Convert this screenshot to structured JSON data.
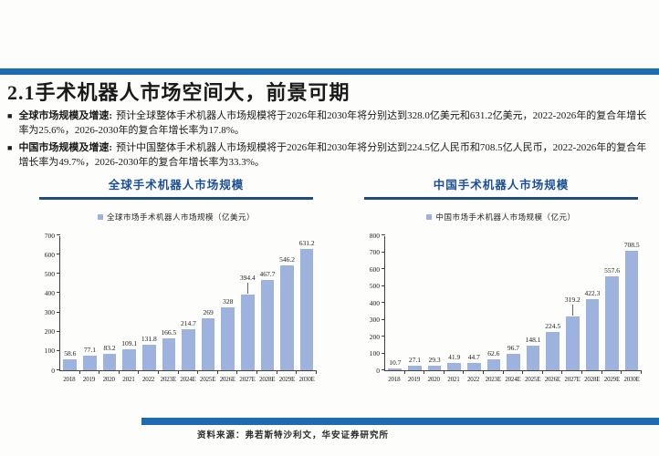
{
  "header": {
    "title": "2.1手术机器人市场空间大，前景可期"
  },
  "bullets": [
    {
      "marker": "■",
      "lead": "全球市场规模及增速:",
      "text": "预计全球整体手术机器人市场规模将于2026年和2030年将分别达到328.0亿美元和631.2亿美元，2022-2026年的复合年增长率为25.6%，2026-2030年的复合年增长率为17.8%。"
    },
    {
      "marker": "■",
      "lead": "中国市场规模及增速:",
      "text": "预计中国整体手术机器人市场规模将于2026年和2030年将分别达到224.5亿人民币和708.5亿人民币，2022-2026年的复合年增长率为49.7%，2026-2030年的复合年增长率为33.3%。"
    }
  ],
  "colors": {
    "accent_bar": "#1c6cb2",
    "chart_title": "#1b4f94",
    "title_underline": "#1f4e79",
    "bar_fill": "#9db3de",
    "axis": "#404040"
  },
  "chart_data": [
    {
      "type": "bar",
      "title": "全球手术机器人市场规模",
      "legend": "全球市场手术机器人市场规模（亿美元）",
      "categories": [
        "2018",
        "2019",
        "2020",
        "2021",
        "2022",
        "2023E",
        "2024E",
        "2025E",
        "2026E",
        "2027E",
        "2028E",
        "2029E",
        "2030E"
      ],
      "values": [
        58.6,
        77.1,
        83.2,
        109.1,
        131.8,
        166.5,
        214.7,
        269,
        328,
        394.4,
        467.7,
        546.2,
        631.2
      ],
      "labels": [
        "58.6",
        "77.1",
        "83.2",
        "109.1",
        "131.8",
        "166.5",
        "214.7",
        "269",
        "328",
        "394.4",
        "467.7",
        "546.2",
        "631.2"
      ],
      "ylim": [
        0,
        700
      ],
      "ytick_step": 100,
      "bar_color": "#9db3de",
      "grid": false,
      "legend_position": "top",
      "callout_indices": [
        9
      ]
    },
    {
      "type": "bar",
      "title": "中国手术机器人市场规模",
      "legend": "中国市场手术机器人市场规模（亿元）",
      "categories": [
        "2018",
        "2019",
        "2020",
        "2021",
        "2022",
        "2023E",
        "2024E",
        "2025E",
        "2026E",
        "2027E",
        "2028E",
        "2029E",
        "2030E"
      ],
      "values": [
        10.7,
        27.1,
        29.3,
        41.9,
        44.7,
        62.6,
        96.7,
        148.1,
        224.5,
        319.2,
        422.3,
        557.6,
        708.5
      ],
      "labels": [
        "10.7",
        "27.1",
        "29.3",
        "41.9",
        "44.7",
        "62.6",
        "96.7",
        "148.1",
        "224.5",
        "319.2",
        "422.3",
        "557.6",
        "708.5"
      ],
      "ylim": [
        0,
        800
      ],
      "ytick_step": 100,
      "bar_color": "#9db3de",
      "grid": false,
      "legend_position": "top",
      "callout_indices": [
        9
      ]
    }
  ],
  "footer": {
    "source": "资料来源：弗若斯特沙利文，华安证券研究所"
  }
}
